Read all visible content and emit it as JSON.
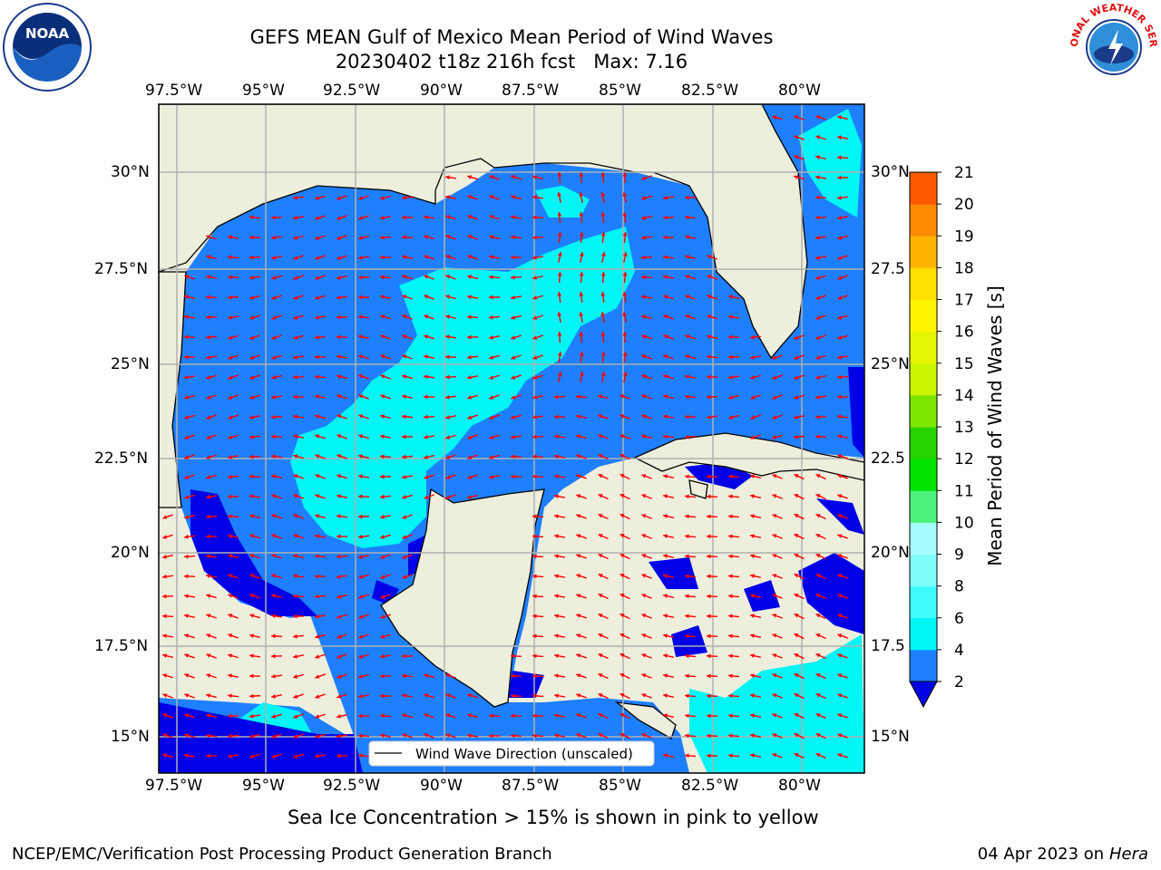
{
  "header": {
    "title_line1": "GEFS MEAN Gulf of Mexico Mean Period of Wind Waves",
    "title_line2": "20230402 t18z 216h fcst   Max: 7.16"
  },
  "logos": {
    "left": "NOAA",
    "right": "NATIONAL WEATHER SERVICE"
  },
  "axes": {
    "lon_ticks": [
      "97.5°W",
      "95°W",
      "92.5°W",
      "90°W",
      "87.5°W",
      "85°W",
      "82.5°W",
      "80°W"
    ],
    "lat_ticks": [
      "30°N",
      "27.5°N",
      "25°N",
      "22.5°N",
      "20°N",
      "17.5°N",
      "15°N"
    ],
    "lat_ticks_right": [
      "30°N",
      "27.5",
      "25°N",
      "22.5",
      "20°N",
      "17.5",
      "15°N"
    ]
  },
  "legend": {
    "label": "Wind Wave Direction (unscaled)"
  },
  "colorbar": {
    "label": "Mean Period of Wind Waves [s]",
    "ticks": [
      "2",
      "4",
      "6",
      "8",
      "9",
      "10",
      "11",
      "12",
      "13",
      "14",
      "15",
      "16",
      "17",
      "18",
      "19",
      "20",
      "21"
    ],
    "colors": [
      "#1e7fff",
      "#00f5f5",
      "#3ffcfc",
      "#7ffcfc",
      "#a6fcfc",
      "#4cf27a",
      "#00e400",
      "#28d400",
      "#7de600",
      "#c8f500",
      "#e6f500",
      "#fff500",
      "#ffe100",
      "#ffb400",
      "#ff8c00",
      "#ff5a00",
      "#ff2800",
      "#ff0000"
    ],
    "extend_color": "#0000e6"
  },
  "colors": {
    "land": "#eeeedd",
    "water_base": "#1e7fff",
    "water_light": "#00f5f5",
    "water_low": "#0000e6",
    "arrow": "#ff0000",
    "grid": "#b0b0b0"
  },
  "notes": {
    "sea_ice": "Sea Ice Concentration > 15% is shown in pink to yellow"
  },
  "footer": {
    "left": "NCEP/EMC/Verification Post Processing Product Generation Branch",
    "right_prefix": "04 Apr 2023 on ",
    "right_host": "Hera"
  }
}
